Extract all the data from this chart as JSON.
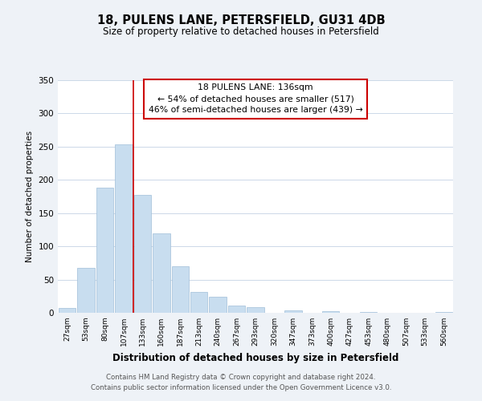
{
  "title_line1": "18, PULENS LANE, PETERSFIELD, GU31 4DB",
  "title_line2": "Size of property relative to detached houses in Petersfield",
  "xlabel": "Distribution of detached houses by size in Petersfield",
  "ylabel": "Number of detached properties",
  "bar_color": "#c8ddef",
  "bar_edge_color": "#a0bfd8",
  "categories": [
    "27sqm",
    "53sqm",
    "80sqm",
    "107sqm",
    "133sqm",
    "160sqm",
    "187sqm",
    "213sqm",
    "240sqm",
    "267sqm",
    "293sqm",
    "320sqm",
    "347sqm",
    "373sqm",
    "400sqm",
    "427sqm",
    "453sqm",
    "480sqm",
    "507sqm",
    "533sqm",
    "560sqm"
  ],
  "values": [
    7,
    67,
    188,
    253,
    177,
    119,
    70,
    31,
    24,
    11,
    9,
    0,
    4,
    0,
    2,
    0,
    1,
    0,
    0,
    0,
    1
  ],
  "ylim": [
    0,
    350
  ],
  "yticks": [
    0,
    50,
    100,
    150,
    200,
    250,
    300,
    350
  ],
  "marker_line_index": 4,
  "marker_label_title": "18 PULENS LANE: 136sqm",
  "marker_text_line2": "← 54% of detached houses are smaller (517)",
  "marker_text_line3": "46% of semi-detached houses are larger (439) →",
  "marker_box_color": "#ffffff",
  "marker_box_edge_color": "#cc0000",
  "marker_line_color": "#cc0000",
  "footer_line1": "Contains HM Land Registry data © Crown copyright and database right 2024.",
  "footer_line2": "Contains public sector information licensed under the Open Government Licence v3.0.",
  "background_color": "#eef2f7",
  "plot_background": "#ffffff",
  "grid_color": "#ccd8e8"
}
